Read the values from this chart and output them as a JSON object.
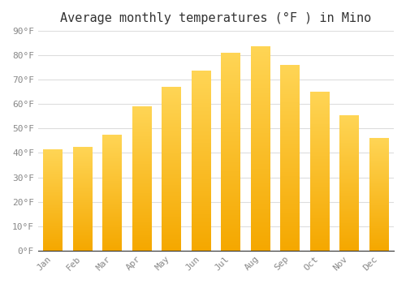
{
  "title": "Average monthly temperatures (°F ) in Mino",
  "months": [
    "Jan",
    "Feb",
    "Mar",
    "Apr",
    "May",
    "Jun",
    "Jul",
    "Aug",
    "Sep",
    "Oct",
    "Nov",
    "Dec"
  ],
  "values": [
    41.5,
    42.5,
    47.5,
    59.0,
    67.0,
    73.5,
    81.0,
    83.5,
    76.0,
    65.0,
    55.5,
    46.0
  ],
  "bar_color_bottom": "#F5A800",
  "bar_color_top": "#FFD555",
  "ylim": [
    0,
    90
  ],
  "yticks": [
    0,
    10,
    20,
    30,
    40,
    50,
    60,
    70,
    80,
    90
  ],
  "ylabel_suffix": "°F",
  "background_color": "#ffffff",
  "grid_color": "#dddddd",
  "title_fontsize": 11,
  "tick_fontsize": 8,
  "bar_width": 0.65
}
